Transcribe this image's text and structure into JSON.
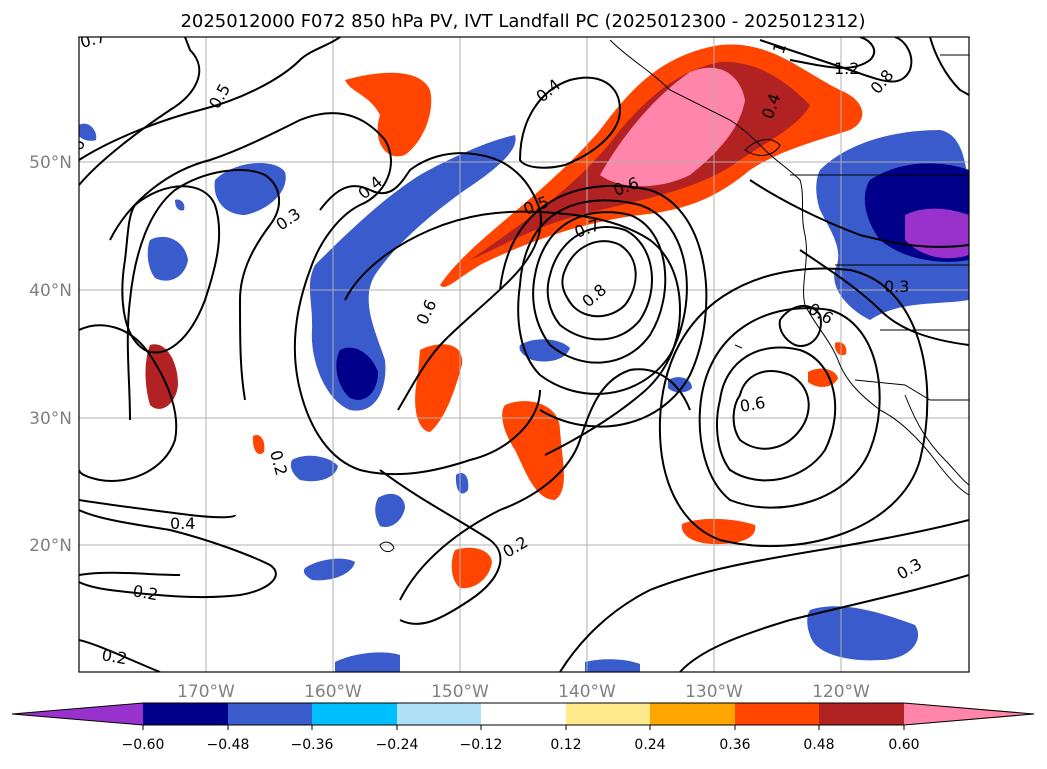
{
  "map": {
    "title": "2025012000 F072 850 hPa PV, IVT Landfall PC (2025012300 - 2025012312)",
    "lat_labels": [
      "50°N",
      "40°N",
      "30°N",
      "20°N"
    ],
    "lon_labels": [
      "170°W",
      "160°W",
      "150°W",
      "140°W",
      "130°W",
      "120°W"
    ],
    "contour_labels": [
      "0.7",
      "0.5",
      "0.6",
      "0.3",
      "0.4",
      "0.4",
      "0.5",
      "0.6",
      "0.7",
      "0.8",
      "0.6",
      "0.2",
      "0.4",
      "0.2",
      "0.2",
      "0.2",
      "0.6",
      "0.3",
      "0.6",
      "1.2",
      "0.8",
      "1",
      "0.3",
      "0.4"
    ]
  },
  "colorbar": {
    "ticks": [
      "−0.60",
      "−0.48",
      "−0.36",
      "−0.24",
      "−0.12",
      "0.12",
      "0.24",
      "0.36",
      "0.48",
      "0.60"
    ],
    "colors": [
      "#9932cc",
      "#00008b",
      "#3a5bcc",
      "#00bfff",
      "#b0e0f5",
      "#ffffff",
      "#ffe98a",
      "#ffa500",
      "#ff4500",
      "#b22222",
      "#ff85aa",
      "#ff85aa"
    ]
  }
}
